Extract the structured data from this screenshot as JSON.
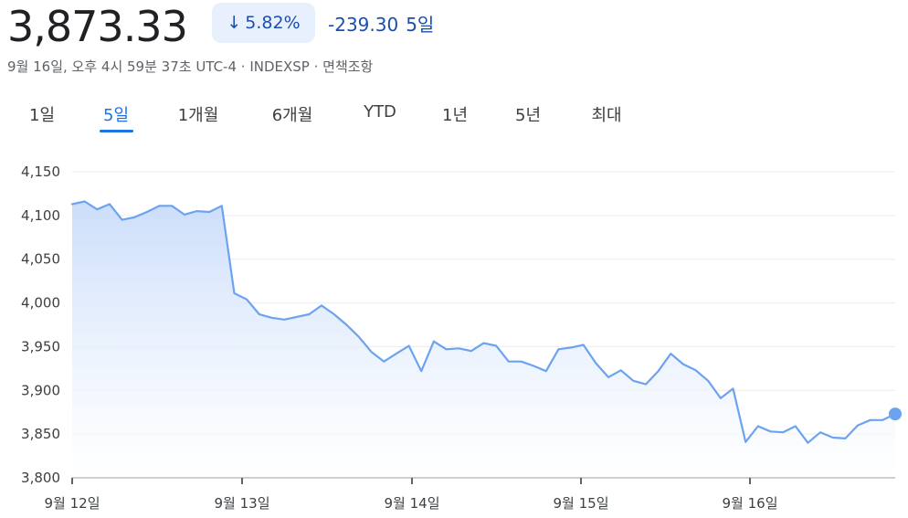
{
  "header": {
    "price": "3,873.33",
    "change_percent": "5.82%",
    "change_value": "-239.30",
    "change_period": "5일",
    "meta": "9월 16일, 오후 4시 59분 37초 UTC-4 · INDEXSP · 면책조항"
  },
  "tabs": [
    {
      "label": "1일"
    },
    {
      "label": "5일",
      "active": true
    },
    {
      "label": "1개월"
    },
    {
      "label": "6개월"
    },
    {
      "label": "YTD"
    },
    {
      "label": "1년"
    },
    {
      "label": "5년"
    },
    {
      "label": "최대"
    }
  ],
  "colors": {
    "line": "#6ba3f1",
    "fill_top": "#c9dcfa",
    "fill_bottom": "#ffffff",
    "accent": "#1a73e8",
    "negative": "#1a4fb0",
    "grid": "#ececec"
  },
  "chart_data": {
    "type": "area",
    "ylim": [
      3800,
      4150
    ],
    "yticks": [
      "4,150",
      "4,100",
      "4,050",
      "4,000",
      "3,950",
      "3,900",
      "3,850",
      "3,800"
    ],
    "ytick_values": [
      4150,
      4100,
      4050,
      4000,
      3950,
      3900,
      3850,
      3800
    ],
    "xticks": [
      "9월 12일",
      "9월 13일",
      "9월 14일",
      "9월 15일",
      "9월 16일"
    ],
    "grid": true,
    "series": [
      {
        "values": [
          4113,
          4116,
          4107,
          4113,
          4095,
          4098,
          4104,
          4111,
          4111,
          4101,
          4105,
          4104,
          4111,
          4011,
          4004,
          3987,
          3983,
          3981,
          3984,
          3987,
          3997,
          3987,
          3975,
          3961,
          3944,
          3933,
          3942,
          3951,
          3922,
          3956,
          3947,
          3948,
          3945,
          3954,
          3951,
          3933,
          3933,
          3928,
          3922,
          3947,
          3949,
          3952,
          3931,
          3915,
          3923,
          3911,
          3907,
          3922,
          3942,
          3930,
          3923,
          3911,
          3891,
          3902,
          3841,
          3859,
          3853,
          3852,
          3859,
          3840,
          3852,
          3846,
          3845,
          3860,
          3866,
          3866,
          3873
        ]
      }
    ]
  }
}
